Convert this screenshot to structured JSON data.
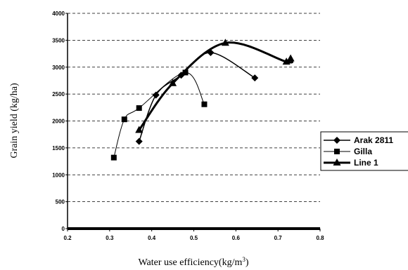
{
  "chart_data": {
    "type": "line",
    "xlabel": "Water use efficiency(kg/m",
    "xlabel_sup": "3",
    "xlabel_end": ")",
    "ylabel": "Grain yield (kg/ha)",
    "xlim": [
      0.2,
      0.8
    ],
    "ylim": [
      0,
      4000
    ],
    "xticks": [
      "0.2",
      "0.3",
      "0.4",
      "0.5",
      "0.6",
      "0.7",
      "0.8"
    ],
    "yticks": [
      "0",
      "500",
      "1000",
      "1500",
      "2000",
      "2500",
      "3000",
      "3500",
      "4000"
    ],
    "grid": "horizontal-dashed",
    "legend_position": "right",
    "series": [
      {
        "name": "Arak 2811",
        "marker": "diamond",
        "x": [
          0.37,
          0.41,
          0.47,
          0.54,
          0.645
        ],
        "y": [
          1620,
          2480,
          2850,
          3270,
          2800
        ]
      },
      {
        "name": "Gilla",
        "marker": "square",
        "x": [
          0.31,
          0.335,
          0.37,
          0.48,
          0.525
        ],
        "y": [
          1320,
          2030,
          2240,
          2900,
          2310
        ]
      },
      {
        "name": "Line 1",
        "marker": "triangle",
        "x": [
          0.37,
          0.45,
          0.575,
          0.72,
          0.73
        ],
        "y": [
          1830,
          2700,
          3450,
          3100,
          3160
        ]
      }
    ]
  }
}
